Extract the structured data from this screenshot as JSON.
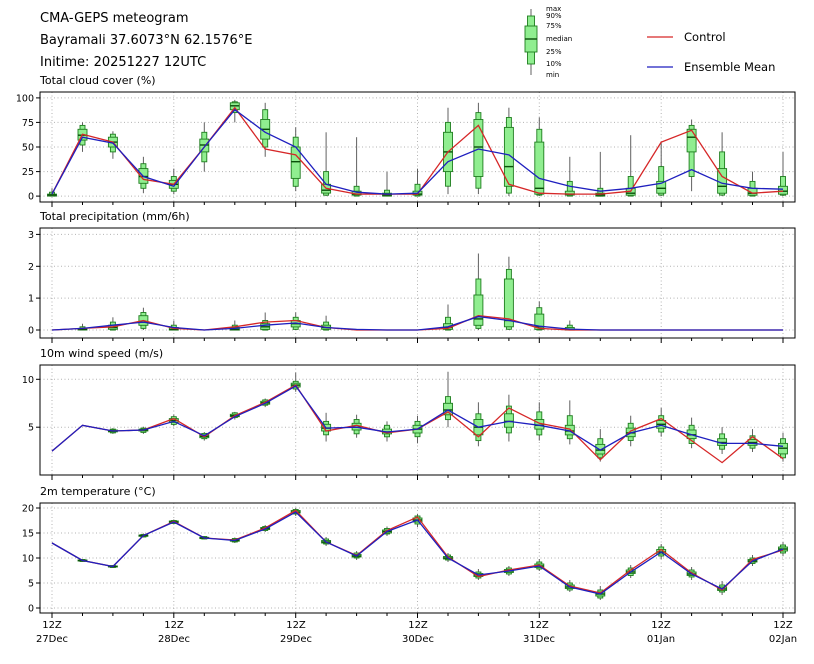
{
  "header": {
    "title": "CMA-GEPS meteogram",
    "location": "Bayramali 37.6073°N 62.1576°E",
    "inittime": "Initime: 20251227 12UTC"
  },
  "legend": {
    "box_labels": [
      "max",
      "90%",
      "75%",
      "median",
      "25%",
      "10%",
      "min"
    ],
    "lines": [
      {
        "label": "Control",
        "color": "#d62728"
      },
      {
        "label": "Ensemble Mean",
        "color": "#1f1fbf"
      }
    ]
  },
  "colors": {
    "control": "#d62728",
    "ensemble": "#1f1fbf",
    "box_fill": "#90ee90",
    "box_edge": "#1e7d1e",
    "whisker": "#606060",
    "grid": "#b3b3b3"
  },
  "x_axis": {
    "n_steps": 25,
    "steps_per_day": 4,
    "tick_labels": [
      {
        "z": "12Z",
        "date": "27Dec"
      },
      {
        "z": "12Z",
        "date": "28Dec"
      },
      {
        "z": "12Z",
        "date": "29Dec"
      },
      {
        "z": "12Z",
        "date": "30Dec"
      },
      {
        "z": "12Z",
        "date": "31Dec"
      },
      {
        "z": "12Z",
        "date": "01Jan"
      },
      {
        "z": "12Z",
        "date": "02Jan"
      }
    ]
  },
  "chart_data": [
    {
      "type": "line",
      "title": "Total cloud cover (%)",
      "ylim": [
        -6,
        106
      ],
      "yticks": [
        0,
        25,
        50,
        75,
        100
      ],
      "series": [
        {
          "name": "Control",
          "values": [
            2,
            63,
            55,
            17,
            12,
            50,
            90,
            48,
            42,
            8,
            2,
            2,
            2,
            45,
            72,
            12,
            3,
            2,
            2,
            5,
            55,
            67,
            20,
            3,
            5
          ]
        },
        {
          "name": "Ensemble Mean",
          "values": [
            2,
            60,
            54,
            20,
            10,
            50,
            88,
            65,
            50,
            12,
            4,
            2,
            3,
            35,
            48,
            42,
            18,
            10,
            5,
            8,
            13,
            27,
            13,
            8,
            7
          ]
        }
      ],
      "boxes": [
        [
          0,
          0,
          0,
          1,
          2,
          4,
          8
        ],
        [
          45,
          52,
          57,
          62,
          68,
          72,
          75
        ],
        [
          38,
          45,
          50,
          55,
          60,
          63,
          66
        ],
        [
          3,
          8,
          13,
          20,
          28,
          33,
          40
        ],
        [
          2,
          5,
          8,
          12,
          16,
          20,
          28
        ],
        [
          25,
          35,
          45,
          52,
          58,
          65,
          75
        ],
        [
          75,
          85,
          88,
          92,
          95,
          96,
          98
        ],
        [
          40,
          50,
          58,
          68,
          78,
          88,
          95
        ],
        [
          5,
          10,
          18,
          35,
          50,
          60,
          70
        ],
        [
          0,
          1,
          3,
          6,
          12,
          25,
          65
        ],
        [
          0,
          0,
          1,
          2,
          5,
          10,
          60
        ],
        [
          0,
          0,
          0,
          1,
          3,
          6,
          25
        ],
        [
          0,
          0,
          1,
          2,
          5,
          12,
          28
        ],
        [
          2,
          10,
          25,
          45,
          65,
          75,
          90
        ],
        [
          2,
          8,
          20,
          50,
          78,
          85,
          95
        ],
        [
          0,
          3,
          10,
          30,
          70,
          80,
          90
        ],
        [
          0,
          1,
          2,
          8,
          55,
          68,
          80
        ],
        [
          0,
          0,
          1,
          2,
          5,
          15,
          40
        ],
        [
          0,
          0,
          0,
          1,
          3,
          8,
          45
        ],
        [
          0,
          0,
          1,
          3,
          8,
          20,
          62
        ],
        [
          0,
          1,
          3,
          8,
          15,
          30,
          55
        ],
        [
          5,
          20,
          45,
          60,
          68,
          72,
          78
        ],
        [
          0,
          1,
          3,
          10,
          28,
          45,
          65
        ],
        [
          0,
          0,
          1,
          3,
          8,
          15,
          25
        ],
        [
          0,
          1,
          2,
          5,
          10,
          20,
          45
        ]
      ]
    },
    {
      "type": "line",
      "title": "Total precipitation (mm/6h)",
      "ylim": [
        -0.25,
        3.2
      ],
      "yticks": [
        0,
        1,
        2,
        3
      ],
      "series": [
        {
          "name": "Control",
          "values": [
            0,
            0.05,
            0.1,
            0.3,
            0.05,
            0,
            0.1,
            0.25,
            0.3,
            0.08,
            0,
            0,
            0,
            0.05,
            0.45,
            0.35,
            0.05,
            0,
            0,
            0,
            0,
            0,
            0,
            0,
            0
          ]
        },
        {
          "name": "Ensemble Mean",
          "values": [
            0,
            0.05,
            0.15,
            0.25,
            0.08,
            0,
            0.05,
            0.15,
            0.22,
            0.08,
            0.02,
            0,
            0,
            0.1,
            0.42,
            0.3,
            0.12,
            0.03,
            0,
            0,
            0,
            0,
            0,
            0,
            0
          ]
        }
      ],
      "boxes": [
        null,
        [
          0,
          0,
          0,
          0.02,
          0.05,
          0.1,
          0.2
        ],
        [
          0,
          0,
          0.02,
          0.08,
          0.15,
          0.25,
          0.4
        ],
        [
          0,
          0.05,
          0.15,
          0.25,
          0.45,
          0.55,
          0.7
        ],
        [
          0,
          0,
          0,
          0.02,
          0.08,
          0.15,
          0.3
        ],
        null,
        [
          0,
          0,
          0,
          0.02,
          0.08,
          0.15,
          0.3
        ],
        [
          0,
          0,
          0.02,
          0.1,
          0.2,
          0.3,
          0.55
        ],
        [
          0,
          0.02,
          0.1,
          0.2,
          0.3,
          0.4,
          0.55
        ],
        [
          0,
          0,
          0.02,
          0.08,
          0.15,
          0.25,
          0.45
        ],
        null,
        null,
        null,
        [
          0,
          0,
          0.02,
          0.08,
          0.2,
          0.4,
          0.8
        ],
        [
          0,
          0.05,
          0.15,
          0.35,
          1.1,
          1.6,
          2.4
        ],
        [
          0,
          0.02,
          0.1,
          0.3,
          1.6,
          1.9,
          2.3
        ],
        [
          0,
          0,
          0.02,
          0.1,
          0.5,
          0.7,
          0.9
        ],
        [
          0,
          0,
          0,
          0.02,
          0.08,
          0.15,
          0.3
        ],
        null,
        null,
        null,
        null,
        null,
        null,
        null
      ]
    },
    {
      "type": "line",
      "title": "10m wind speed (m/s)",
      "ylim": [
        0,
        11.5
      ],
      "yticks": [
        5,
        10
      ],
      "series": [
        {
          "name": "Control",
          "values": [
            2.5,
            5.2,
            4.6,
            4.7,
            5.9,
            4.0,
            6.2,
            7.6,
            9.4,
            4.6,
            5.2,
            4.4,
            4.8,
            6.6,
            4.0,
            7.0,
            5.4,
            4.8,
            1.6,
            4.6,
            5.9,
            3.6,
            1.3,
            4.0,
            1.7
          ]
        },
        {
          "name": "Ensemble Mean",
          "values": [
            2.5,
            5.2,
            4.6,
            4.7,
            5.6,
            4.1,
            6.1,
            7.5,
            9.3,
            4.9,
            5.0,
            4.5,
            4.8,
            6.8,
            5.0,
            5.6,
            5.2,
            4.6,
            2.6,
            4.4,
            5.2,
            4.2,
            3.3,
            3.3,
            3.0
          ]
        }
      ],
      "boxes": [
        null,
        null,
        [
          4.3,
          4.4,
          4.5,
          4.6,
          4.7,
          4.8,
          4.9
        ],
        [
          4.3,
          4.45,
          4.6,
          4.7,
          4.8,
          4.9,
          5.05
        ],
        [
          5.1,
          5.3,
          5.5,
          5.7,
          5.9,
          6.1,
          6.3
        ],
        [
          3.6,
          3.8,
          3.9,
          4.05,
          4.2,
          4.35,
          4.5
        ],
        [
          5.8,
          6.0,
          6.1,
          6.2,
          6.35,
          6.5,
          6.6
        ],
        [
          7.1,
          7.3,
          7.4,
          7.55,
          7.7,
          7.85,
          8.0
        ],
        [
          8.7,
          9.0,
          9.2,
          9.4,
          9.6,
          9.8,
          10.7
        ],
        [
          3.5,
          4.2,
          4.6,
          4.9,
          5.3,
          5.6,
          6.5
        ],
        [
          3.9,
          4.3,
          4.7,
          5.0,
          5.4,
          5.8,
          6.3
        ],
        [
          3.5,
          4.0,
          4.3,
          4.5,
          4.8,
          5.2,
          5.6
        ],
        [
          3.3,
          4.0,
          4.4,
          4.8,
          5.2,
          5.6,
          6.2
        ],
        [
          5.0,
          5.8,
          6.3,
          6.8,
          7.5,
          8.2,
          10.8
        ],
        [
          3.0,
          3.6,
          4.2,
          5.0,
          5.8,
          6.4,
          7.6
        ],
        [
          3.5,
          4.4,
          5.0,
          5.6,
          6.4,
          7.2,
          8.4
        ],
        [
          3.6,
          4.2,
          4.8,
          5.2,
          5.8,
          6.6,
          7.6
        ],
        [
          3.2,
          3.8,
          4.2,
          4.6,
          5.2,
          6.2,
          7.8
        ],
        [
          1.4,
          1.8,
          2.2,
          2.6,
          3.2,
          3.8,
          4.8
        ],
        [
          3.0,
          3.6,
          4.0,
          4.4,
          4.9,
          5.4,
          6.2
        ],
        [
          4.0,
          4.5,
          4.9,
          5.3,
          5.7,
          6.2,
          7.0
        ],
        [
          2.8,
          3.3,
          3.8,
          4.2,
          4.7,
          5.2,
          6.0
        ],
        [
          2.2,
          2.7,
          3.1,
          3.4,
          3.8,
          4.3,
          5.0
        ],
        [
          2.4,
          2.8,
          3.1,
          3.4,
          3.7,
          4.1,
          4.8
        ],
        [
          1.4,
          1.8,
          2.2,
          2.8,
          3.3,
          3.8,
          4.4
        ]
      ]
    },
    {
      "type": "line",
      "title": "2m temperature (°C)",
      "ylim": [
        -1,
        21
      ],
      "yticks": [
        0,
        5,
        10,
        15,
        20
      ],
      "series": [
        {
          "name": "Control",
          "values": [
            13.0,
            9.5,
            8.3,
            14.5,
            17.3,
            14.0,
            13.6,
            16.0,
            19.5,
            13.2,
            10.5,
            15.5,
            18.2,
            10.2,
            6.3,
            7.6,
            8.6,
            4.4,
            3.0,
            7.6,
            11.7,
            7.0,
            3.6,
            9.7,
            11.6
          ]
        },
        {
          "name": "Ensemble Mean",
          "values": [
            13.0,
            9.5,
            8.3,
            14.5,
            17.2,
            14.0,
            13.5,
            15.8,
            19.2,
            13.2,
            10.4,
            15.3,
            17.6,
            10.0,
            6.6,
            7.4,
            8.4,
            4.2,
            2.8,
            7.2,
            11.2,
            6.8,
            3.8,
            9.4,
            11.8
          ]
        }
      ],
      "boxes": [
        null,
        [
          9.2,
          9.3,
          9.4,
          9.5,
          9.6,
          9.7,
          9.8
        ],
        [
          8.0,
          8.1,
          8.2,
          8.3,
          8.4,
          8.5,
          8.6
        ],
        [
          14.1,
          14.2,
          14.35,
          14.5,
          14.6,
          14.7,
          14.9
        ],
        [
          16.8,
          16.9,
          17.1,
          17.2,
          17.4,
          17.5,
          17.7
        ],
        [
          13.7,
          13.8,
          13.9,
          14.0,
          14.15,
          14.3,
          14.4
        ],
        [
          13.0,
          13.2,
          13.35,
          13.5,
          13.7,
          13.9,
          14.1
        ],
        [
          15.2,
          15.5,
          15.7,
          15.9,
          16.1,
          16.3,
          16.6
        ],
        [
          18.4,
          18.8,
          19.0,
          19.2,
          19.5,
          19.7,
          20.0
        ],
        [
          12.4,
          12.8,
          13.0,
          13.2,
          13.5,
          13.8,
          14.2
        ],
        [
          9.6,
          10.0,
          10.2,
          10.4,
          10.7,
          11.0,
          11.4
        ],
        [
          14.4,
          14.8,
          15.0,
          15.3,
          15.6,
          15.9,
          16.3
        ],
        [
          16.2,
          16.8,
          17.2,
          17.6,
          18.0,
          18.4,
          18.8
        ],
        [
          9.2,
          9.6,
          9.8,
          10.0,
          10.3,
          10.6,
          11.0
        ],
        [
          5.6,
          6.0,
          6.3,
          6.6,
          6.9,
          7.2,
          7.8
        ],
        [
          6.4,
          6.8,
          7.1,
          7.4,
          7.7,
          8.0,
          8.4
        ],
        [
          7.4,
          7.8,
          8.1,
          8.4,
          8.8,
          9.2,
          9.8
        ],
        [
          3.2,
          3.6,
          3.9,
          4.2,
          4.6,
          5.0,
          5.6
        ],
        [
          1.6,
          2.0,
          2.4,
          2.8,
          3.2,
          3.6,
          4.4
        ],
        [
          6.0,
          6.5,
          6.9,
          7.2,
          7.6,
          8.0,
          8.6
        ],
        [
          9.8,
          10.4,
          10.8,
          11.2,
          11.7,
          12.2,
          12.8
        ],
        [
          5.6,
          6.2,
          6.5,
          6.8,
          7.2,
          7.6,
          8.2
        ],
        [
          2.6,
          3.2,
          3.5,
          3.8,
          4.2,
          4.6,
          5.4
        ],
        [
          8.4,
          8.9,
          9.2,
          9.4,
          9.7,
          10.0,
          10.6
        ],
        [
          10.4,
          11.0,
          11.4,
          11.8,
          12.2,
          12.6,
          13.2
        ]
      ]
    }
  ]
}
